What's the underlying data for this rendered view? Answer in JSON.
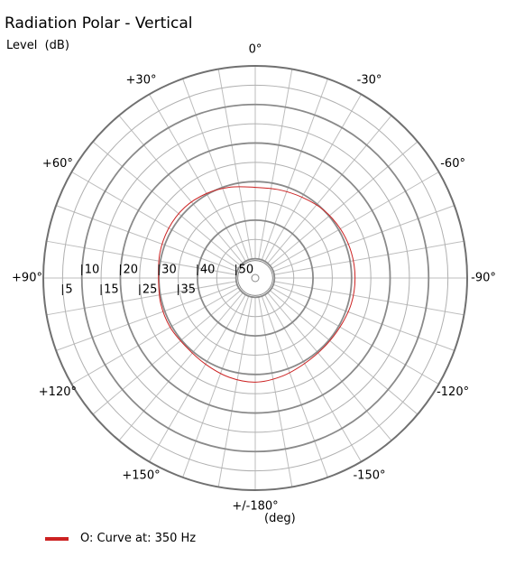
{
  "chart_data": {
    "type": "polar",
    "title": "Radiation Polar - Vertical",
    "ylabel": "Level  (dB)",
    "xlabel": "(deg)",
    "angle_ticks": [
      {
        "angle": 0,
        "label": "0°"
      },
      {
        "angle": -30,
        "label": "-30°"
      },
      {
        "angle": -60,
        "label": "-60°"
      },
      {
        "angle": -90,
        "label": "-90°"
      },
      {
        "angle": -120,
        "label": "-120°"
      },
      {
        "angle": -150,
        "label": "-150°"
      },
      {
        "angle": 180,
        "label": "+/-180°"
      },
      {
        "angle": 150,
        "label": "+150°"
      },
      {
        "angle": 120,
        "label": "+120°"
      },
      {
        "angle": 90,
        "label": "+90°"
      },
      {
        "angle": 60,
        "label": "+60°"
      },
      {
        "angle": 30,
        "label": "+30°"
      }
    ],
    "radial_ticks": [
      {
        "value": -5,
        "label": "5"
      },
      {
        "value": -10,
        "label": "10"
      },
      {
        "value": -15,
        "label": "15"
      },
      {
        "value": -20,
        "label": "20"
      },
      {
        "value": -25,
        "label": "25"
      },
      {
        "value": -30,
        "label": "30"
      },
      {
        "value": -35,
        "label": "35"
      },
      {
        "value": -40,
        "label": "40"
      },
      {
        "value": -50,
        "label": "50"
      }
    ],
    "rlim": [
      -55,
      0
    ],
    "angular_gridlines_every_deg": 10,
    "grid": true,
    "legend_position": "bottom-left",
    "series": [
      {
        "name": "O: Curve at: 350 Hz",
        "color": "#cc2222",
        "points": [
          {
            "angle": 0,
            "value": -31.5
          },
          {
            "angle": -15,
            "value": -31.3
          },
          {
            "angle": -30,
            "value": -30.8
          },
          {
            "angle": -45,
            "value": -30.0
          },
          {
            "angle": -60,
            "value": -29.5
          },
          {
            "angle": -75,
            "value": -29.2
          },
          {
            "angle": -90,
            "value": -29.1
          },
          {
            "angle": -105,
            "value": -29.2
          },
          {
            "angle": -120,
            "value": -29.6
          },
          {
            "angle": -135,
            "value": -29.7
          },
          {
            "angle": -150,
            "value": -29.4
          },
          {
            "angle": -165,
            "value": -28.6
          },
          {
            "angle": 180,
            "value": -28.0
          },
          {
            "angle": 165,
            "value": -28.4
          },
          {
            "angle": 150,
            "value": -29.2
          },
          {
            "angle": 135,
            "value": -29.7
          },
          {
            "angle": 120,
            "value": -29.5
          },
          {
            "angle": 105,
            "value": -29.6
          },
          {
            "angle": 90,
            "value": -29.9
          },
          {
            "angle": 75,
            "value": -29.4
          },
          {
            "angle": 60,
            "value": -29.1
          },
          {
            "angle": 45,
            "value": -29.1
          },
          {
            "angle": 30,
            "value": -29.7
          },
          {
            "angle": 15,
            "value": -30.6
          }
        ]
      }
    ]
  }
}
